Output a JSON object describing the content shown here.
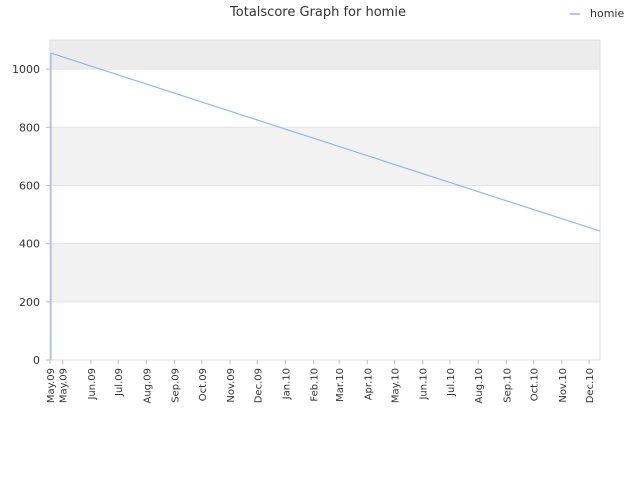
{
  "chart_data": {
    "type": "line",
    "title": "Totalscore Graph for homie",
    "xlabel": "",
    "ylabel": "",
    "ylim": [
      0,
      1100
    ],
    "yticks": [
      0,
      200,
      400,
      600,
      800,
      1000
    ],
    "grid": true,
    "legend_position": "top-right",
    "x_tick_labels": [
      "May.09",
      "May.09",
      "Jun.09",
      "Jul.09",
      "Aug.09",
      "Sep.09",
      "Oct.09",
      "Nov.09",
      "Dec.09",
      "Jan.10",
      "Feb.10",
      "Mar.10",
      "Apr.10",
      "May.10",
      "Jun.10",
      "Jul.10",
      "Aug.10",
      "Sep.10",
      "Oct.10",
      "Nov.10",
      "Dec.10"
    ],
    "x_tick_dates": [
      "2009-05-01",
      "2009-05-15",
      "2009-06-15",
      "2009-07-15",
      "2009-08-15",
      "2009-09-15",
      "2009-10-15",
      "2009-11-15",
      "2009-12-15",
      "2010-01-15",
      "2010-02-15",
      "2010-03-15",
      "2010-04-15",
      "2010-05-15",
      "2010-06-15",
      "2010-07-15",
      "2010-08-15",
      "2010-09-15",
      "2010-10-15",
      "2010-11-15",
      "2010-12-15"
    ],
    "xlim": [
      "2009-05-01",
      "2010-12-27"
    ],
    "series": [
      {
        "name": "homie",
        "color": "#88bbee",
        "points": [
          {
            "x": "2009-05-02",
            "y": 0
          },
          {
            "x": "2009-05-02",
            "y": 960
          },
          {
            "x": "2009-05-02",
            "y": 1055
          },
          {
            "x": "2010-12-27",
            "y": 443
          }
        ]
      }
    ]
  }
}
